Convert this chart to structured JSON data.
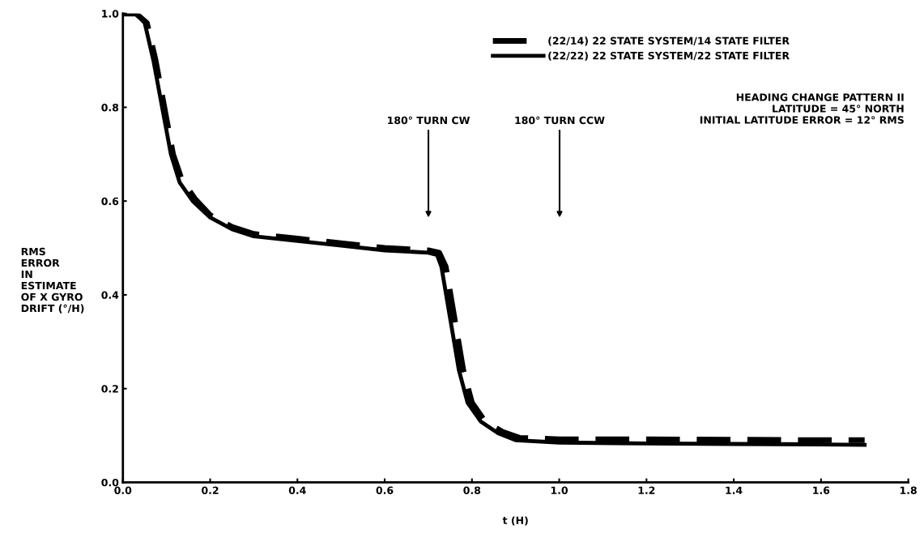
{
  "chart_data": {
    "type": "line",
    "xlabel": "t (H)",
    "ylabel": "RMS\nERROR\nIN\nESTIMATE\nOF X GYRO\nDRIFT (°/H)",
    "xlim": [
      0,
      1.8
    ],
    "ylim": [
      0,
      1.0
    ],
    "xticks": [
      {
        "value": 0,
        "label": "0.0"
      },
      0.2,
      0.4,
      0.6,
      0.8,
      {
        "value": 1.0,
        "label": "1.0"
      },
      1.2,
      1.4,
      1.6,
      1.8
    ],
    "yticks": [
      {
        "value": 0,
        "label": "0.0"
      },
      0.2,
      0.4,
      0.6,
      0.8,
      {
        "value": 1.0,
        "label": "1.0"
      }
    ],
    "grid": false,
    "legend": "top",
    "marker": "none",
    "series": [
      {
        "name": "(22/14) 22 STATE SYSTEM/14 STATE FILTER",
        "color": "#000000",
        "line_style": "dashed",
        "x": [
          0,
          0.03,
          0.055,
          0.075,
          0.095,
          0.115,
          0.135,
          0.165,
          0.2,
          0.25,
          0.3,
          0.4,
          0.5,
          0.6,
          0.7,
          0.725,
          0.74,
          0.76,
          0.78,
          0.8,
          0.83,
          0.87,
          0.91,
          1.0,
          1.2,
          1.4,
          1.6,
          1.7
        ],
        "values": [
          1.0,
          1.0,
          0.98,
          0.9,
          0.8,
          0.7,
          0.645,
          0.605,
          0.57,
          0.545,
          0.53,
          0.52,
          0.51,
          0.5,
          0.495,
          0.49,
          0.46,
          0.35,
          0.24,
          0.17,
          0.13,
          0.108,
          0.095,
          0.092,
          0.092,
          0.091,
          0.09,
          0.09
        ]
      },
      {
        "name": "(22/22) 22 STATE SYSTEM/22 STATE FILTER",
        "color": "#000000",
        "line_style": "solid",
        "x": [
          0,
          0.03,
          0.05,
          0.07,
          0.09,
          0.11,
          0.13,
          0.16,
          0.2,
          0.25,
          0.3,
          0.4,
          0.5,
          0.6,
          0.7,
          0.72,
          0.73,
          0.75,
          0.77,
          0.79,
          0.82,
          0.86,
          0.9,
          1.0,
          1.2,
          1.4,
          1.6,
          1.7
        ],
        "values": [
          1.0,
          1.0,
          0.98,
          0.9,
          0.8,
          0.7,
          0.64,
          0.6,
          0.565,
          0.54,
          0.525,
          0.515,
          0.505,
          0.495,
          0.49,
          0.485,
          0.46,
          0.35,
          0.24,
          0.17,
          0.13,
          0.105,
          0.09,
          0.085,
          0.083,
          0.082,
          0.081,
          0.08
        ]
      }
    ],
    "annotations": [
      "180° TURN CW",
      "180° TURN CCW",
      "HEADING CHANGE PATTERN II\nLATITUDE = 45° NORTH\nINITIAL LATITUDE ERROR = 12° RMS"
    ]
  }
}
